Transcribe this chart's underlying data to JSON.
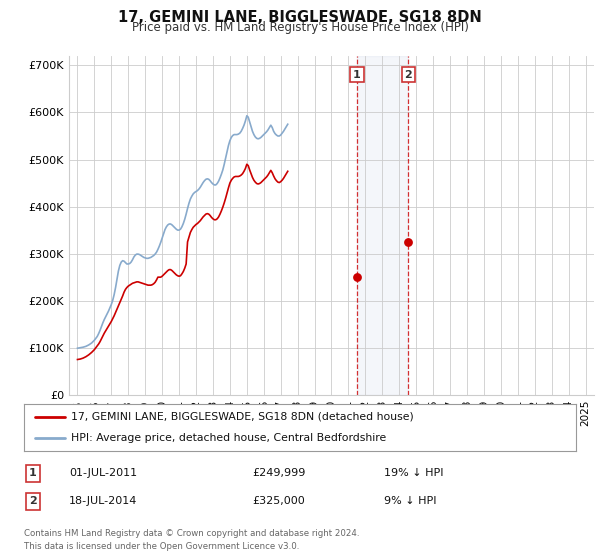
{
  "title": "17, GEMINI LANE, BIGGLESWADE, SG18 8DN",
  "subtitle": "Price paid vs. HM Land Registry's House Price Index (HPI)",
  "ylim": [
    0,
    720000
  ],
  "yticks": [
    0,
    100000,
    200000,
    300000,
    400000,
    500000,
    600000,
    700000
  ],
  "ytick_labels": [
    "£0",
    "£100K",
    "£200K",
    "£300K",
    "£400K",
    "£500K",
    "£600K",
    "£700K"
  ],
  "legend_line1": "17, GEMINI LANE, BIGGLESWADE, SG18 8DN (detached house)",
  "legend_line2": "HPI: Average price, detached house, Central Bedfordshire",
  "line1_color": "#cc0000",
  "line2_color": "#88aacc",
  "transaction1_date": 2011.5,
  "transaction1_price": 249999,
  "transaction1_label": "1",
  "transaction2_date": 2014.54,
  "transaction2_price": 325000,
  "transaction2_label": "2",
  "highlight_start": 2011.5,
  "highlight_end": 2014.54,
  "footer1": "Contains HM Land Registry data © Crown copyright and database right 2024.",
  "footer2": "This data is licensed under the Open Government Licence v3.0.",
  "table_row1": [
    "1",
    "01-JUL-2011",
    "£249,999",
    "19% ↓ HPI"
  ],
  "table_row2": [
    "2",
    "18-JUL-2014",
    "£325,000",
    "9% ↓ HPI"
  ],
  "background_color": "#ffffff",
  "grid_color": "#cccccc",
  "hpi_values": [
    99000,
    99500,
    100000,
    100500,
    101200,
    102000,
    103000,
    104500,
    106000,
    108000,
    110000,
    113000,
    116000,
    120000,
    124000,
    130000,
    137000,
    145000,
    153000,
    160000,
    166000,
    172000,
    178000,
    185000,
    192000,
    201000,
    213000,
    228000,
    245000,
    263000,
    275000,
    282000,
    285000,
    284000,
    281000,
    278000,
    278000,
    279000,
    282000,
    287000,
    293000,
    297000,
    299000,
    299000,
    298000,
    296000,
    294000,
    292000,
    291000,
    290000,
    290000,
    291000,
    292000,
    294000,
    296000,
    299000,
    303000,
    309000,
    316000,
    324000,
    333000,
    342000,
    351000,
    357000,
    361000,
    363000,
    363000,
    361000,
    358000,
    355000,
    352000,
    350000,
    350000,
    352000,
    357000,
    364000,
    373000,
    384000,
    396000,
    407000,
    416000,
    422000,
    427000,
    430000,
    432000,
    434000,
    437000,
    441000,
    446000,
    451000,
    455000,
    458000,
    459000,
    458000,
    455000,
    451000,
    448000,
    446000,
    446000,
    449000,
    454000,
    461000,
    469000,
    478000,
    490000,
    503000,
    517000,
    530000,
    540000,
    547000,
    551000,
    553000,
    553000,
    553000,
    554000,
    556000,
    560000,
    566000,
    573000,
    582000,
    593000,
    590000,
    580000,
    570000,
    560000,
    553000,
    548000,
    545000,
    544000,
    545000,
    547000,
    550000,
    553000,
    556000,
    559000,
    563000,
    568000,
    573000,
    568000,
    560000,
    555000,
    552000,
    550000,
    550000,
    552000,
    556000,
    560000,
    565000,
    570000,
    575000
  ],
  "prop_values": [
    75000,
    75500,
    76000,
    77000,
    78000,
    79500,
    81000,
    83000,
    85000,
    87500,
    90000,
    93000,
    96000,
    100000,
    104000,
    108000,
    113000,
    119000,
    125000,
    131000,
    136000,
    141000,
    146000,
    151000,
    156000,
    162000,
    168000,
    175000,
    182000,
    189000,
    196000,
    203000,
    210000,
    218000,
    224000,
    228000,
    231000,
    233000,
    235000,
    237000,
    238000,
    239000,
    240000,
    240000,
    239000,
    238000,
    237000,
    236000,
    235000,
    234000,
    233000,
    233000,
    233000,
    234000,
    236000,
    239000,
    244000,
    250000,
    249999,
    249999,
    252000,
    255000,
    258000,
    261000,
    264000,
    266000,
    266000,
    264000,
    261000,
    258000,
    255000,
    253000,
    252000,
    253000,
    257000,
    262000,
    269000,
    278000,
    325000,
    335000,
    345000,
    351000,
    356000,
    359000,
    362000,
    364000,
    367000,
    370000,
    374000,
    378000,
    381000,
    384000,
    385000,
    384000,
    381000,
    377000,
    374000,
    372000,
    372000,
    374000,
    378000,
    384000,
    391000,
    399000,
    408000,
    418000,
    429000,
    440000,
    450000,
    456000,
    460000,
    463000,
    464000,
    464000,
    464000,
    465000,
    467000,
    470000,
    475000,
    481000,
    490000,
    487000,
    478000,
    470000,
    462000,
    456000,
    452000,
    449000,
    448000,
    449000,
    451000,
    454000,
    457000,
    460000,
    463000,
    467000,
    472000,
    477000,
    472000,
    465000,
    459000,
    455000,
    452000,
    451000,
    453000,
    456000,
    460000,
    465000,
    470000,
    475000
  ],
  "xlim_start": 1994.5,
  "xlim_end": 2025.5,
  "xtick_years": [
    1995,
    1996,
    1997,
    1998,
    1999,
    2000,
    2001,
    2002,
    2003,
    2004,
    2005,
    2006,
    2007,
    2008,
    2009,
    2010,
    2011,
    2012,
    2013,
    2014,
    2015,
    2016,
    2017,
    2018,
    2019,
    2020,
    2021,
    2022,
    2023,
    2024,
    2025
  ]
}
